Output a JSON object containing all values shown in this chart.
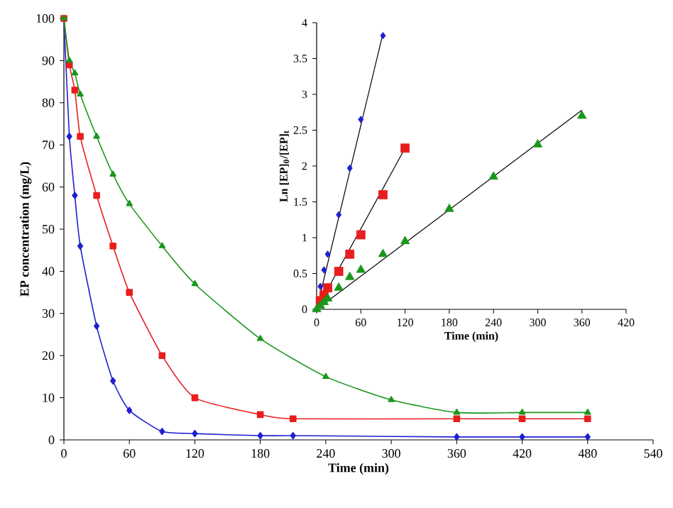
{
  "chart_data": [
    {
      "type": "line",
      "xlabel": "Time (min)",
      "ylabel": "EP concentration (mg/L)",
      "xlim": [
        0,
        540
      ],
      "xticks": [
        0,
        60,
        120,
        180,
        240,
        300,
        360,
        420,
        480,
        540
      ],
      "ylim": [
        0,
        100
      ],
      "yticks": [
        0,
        10,
        20,
        30,
        40,
        50,
        60,
        70,
        80,
        90,
        100
      ],
      "grid": false,
      "line_style": "solid",
      "series": [
        {
          "color": "#1f1fd0",
          "marker": "diamond",
          "x": [
            0,
            5,
            10,
            15,
            30,
            45,
            60,
            90,
            120,
            180,
            210,
            360,
            420,
            480
          ],
          "values": [
            100,
            72,
            58,
            46,
            27,
            14,
            7,
            2,
            1.5,
            1,
            1,
            0.7,
            0.7,
            0.7
          ]
        },
        {
          "color": "#e81e1e",
          "marker": "square",
          "x": [
            0,
            5,
            10,
            15,
            30,
            45,
            60,
            90,
            120,
            180,
            210,
            360,
            420,
            480
          ],
          "values": [
            100,
            89,
            83,
            72,
            58,
            46,
            35,
            20,
            10,
            6,
            5,
            5,
            5,
            5
          ]
        },
        {
          "color": "#1a961a",
          "marker": "triangle",
          "x": [
            0,
            5,
            10,
            15,
            30,
            45,
            60,
            90,
            120,
            180,
            240,
            300,
            360,
            420,
            480
          ],
          "values": [
            100,
            90,
            87,
            82,
            72,
            63,
            56,
            46,
            37,
            24,
            15,
            9.5,
            6.5,
            6.5,
            6.5
          ]
        }
      ]
    },
    {
      "type": "scatter",
      "xlabel": "Time (min)",
      "ylabel": "Ln [EP]$_{0}$/[EP]$_{t}$",
      "xlim": [
        0,
        420
      ],
      "xticks": [
        0,
        60,
        120,
        180,
        240,
        300,
        360,
        420
      ],
      "ylim": [
        0,
        4
      ],
      "yticks": [
        0,
        0.5,
        1,
        1.5,
        2,
        2.5,
        3,
        3.5,
        4
      ],
      "grid": false,
      "series": [
        {
          "type": "line",
          "color": "#000000",
          "marker": "none",
          "x": [
            0,
            90
          ],
          "values": [
            0,
            3.85
          ]
        },
        {
          "type": "line",
          "color": "#000000",
          "marker": "none",
          "x": [
            0,
            120
          ],
          "values": [
            0,
            2.25
          ]
        },
        {
          "type": "line",
          "color": "#000000",
          "marker": "none",
          "x": [
            0,
            360
          ],
          "values": [
            0,
            2.78
          ]
        },
        {
          "color": "#1f1fd0",
          "marker": "diamond",
          "x": [
            5,
            10,
            15,
            30,
            45,
            60,
            90
          ],
          "values": [
            0.32,
            0.55,
            0.77,
            1.32,
            1.97,
            2.65,
            3.82
          ]
        },
        {
          "color": "#e81e1e",
          "marker": "square",
          "x": [
            5,
            10,
            15,
            30,
            45,
            60,
            90,
            120
          ],
          "values": [
            0.12,
            0.2,
            0.3,
            0.53,
            0.77,
            1.04,
            1.6,
            2.25
          ]
        },
        {
          "color": "#1a961a",
          "marker": "triangle",
          "x": [
            0,
            5,
            10,
            15,
            30,
            45,
            60,
            90,
            120,
            180,
            240,
            300,
            360
          ],
          "values": [
            0,
            0.05,
            0.1,
            0.15,
            0.3,
            0.45,
            0.55,
            0.77,
            0.95,
            1.4,
            1.85,
            2.3,
            2.7
          ]
        }
      ]
    }
  ]
}
